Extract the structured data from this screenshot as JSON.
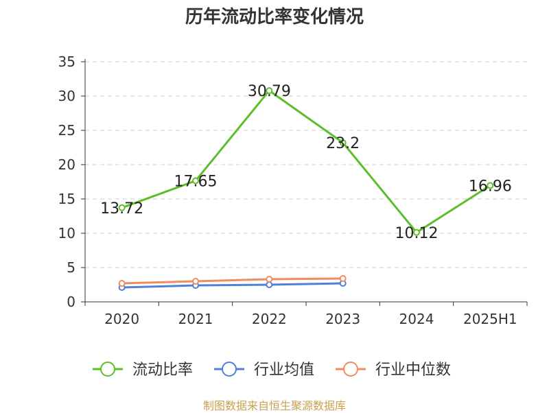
{
  "chart_data": {
    "type": "line",
    "title": "历年流动比率变化情况",
    "categories": [
      "2020",
      "2021",
      "2022",
      "2023",
      "2024",
      "2025H1"
    ],
    "ylim": [
      0,
      35
    ],
    "yticks": [
      0,
      5,
      10,
      15,
      20,
      25,
      30,
      35
    ],
    "grid": true,
    "legend_position": "bottom",
    "series": [
      {
        "name": "流动比率",
        "color": "#5cbf2a",
        "values": [
          13.72,
          17.65,
          30.79,
          23.2,
          10.12,
          16.96
        ],
        "labels": [
          "13.72",
          "17.65",
          "30.79",
          "23.2",
          "10.12",
          "16.96"
        ]
      },
      {
        "name": "行业均值",
        "color": "#4f7fd9",
        "values": [
          2.1,
          2.4,
          2.5,
          2.7,
          null,
          null
        ]
      },
      {
        "name": "行业中位数",
        "color": "#f28c5c",
        "values": [
          2.7,
          3.0,
          3.3,
          3.4,
          null,
          null
        ]
      }
    ]
  },
  "source": "制图数据来自恒生聚源数据库"
}
